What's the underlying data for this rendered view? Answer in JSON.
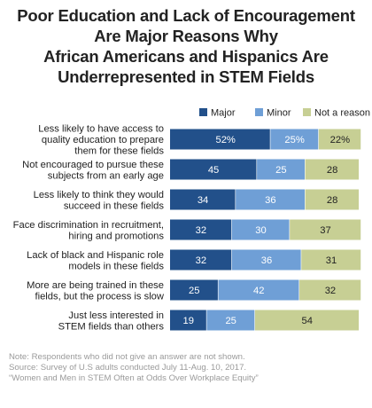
{
  "title_lines": [
    "Poor Education and Lack of Encouragement",
    "Are Major Reasons Why",
    "African Americans and Hispanics Are",
    "Underrepresented in STEM Fields"
  ],
  "colors": {
    "major": "#22508a",
    "minor": "#6f9fd6",
    "not_a_reason": "#c7cf94",
    "title": "#222222",
    "note": "#9a9a9a"
  },
  "chart_data": {
    "type": "bar",
    "orientation": "horizontal",
    "stacked": true,
    "legend_position": "top",
    "xlim": [
      0,
      100
    ],
    "grid": false,
    "categories": [
      [
        "Less likely to have access to",
        "quality education to prepare",
        "them for these fields"
      ],
      [
        "Not encouraged to pursue these",
        "subjects from an early age"
      ],
      [
        "Less likely to think they would",
        "succeed in these fields"
      ],
      [
        "Face discrimination in recruitment,",
        "hiring and promotions"
      ],
      [
        "Lack of black and Hispanic role",
        "models in these fields"
      ],
      [
        "More are being trained in these",
        "fields, but the process is slow"
      ],
      [
        "Just less interested in",
        "STEM fields than others"
      ]
    ],
    "series": [
      {
        "name": "Major",
        "values": [
          52,
          45,
          34,
          32,
          32,
          25,
          19
        ],
        "labels": [
          "52%",
          "45",
          "34",
          "32",
          "32",
          "25",
          "19"
        ]
      },
      {
        "name": "Minor",
        "values": [
          25,
          25,
          36,
          30,
          36,
          42,
          25
        ],
        "labels": [
          "25%",
          "25",
          "36",
          "30",
          "36",
          "42",
          "25"
        ]
      },
      {
        "name": "Not a reason",
        "values": [
          22,
          28,
          28,
          37,
          31,
          32,
          54
        ],
        "labels": [
          "22%",
          "28",
          "28",
          "37",
          "31",
          "32",
          "54"
        ]
      }
    ]
  },
  "notes": [
    "Note: Respondents who did not give an answer are not shown.",
    "Source: Survey of U.S adults conducted July 11-Aug. 10, 2017.",
    "“Women and Men in STEM Often at Odds Over Workplace Equity”"
  ]
}
